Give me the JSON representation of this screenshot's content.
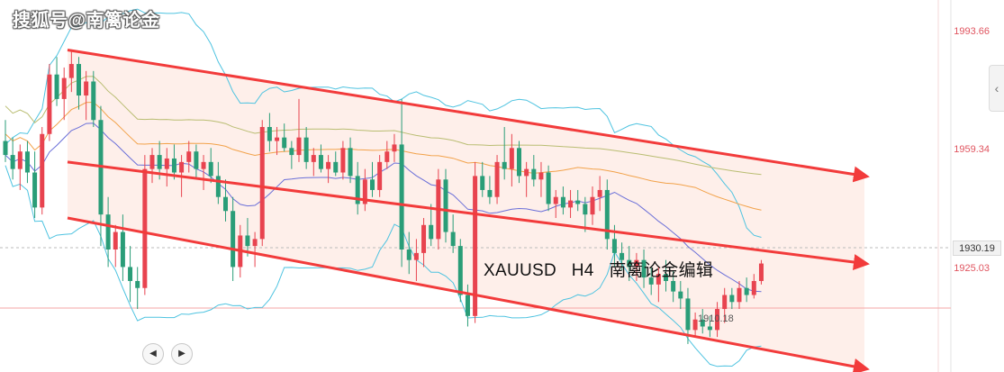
{
  "watermark": "搜狐号@南篱论金",
  "caption": {
    "symbol": "XAUUSD",
    "timeframe": "H4",
    "author": "南篱论金编辑"
  },
  "price_scale": {
    "labels": [
      "1993.66",
      "1959.34",
      "1925.03"
    ],
    "current_price": "1930.19"
  },
  "low_label": "1910.18",
  "nav": {
    "prev_icon": "◀",
    "next_icon": "▶",
    "collapse_icon": "‹"
  },
  "colors": {
    "up": "#e8434f",
    "down": "#2a9d78",
    "bollinger": "#4ec3e0",
    "ma_blue": "#6a6fd8",
    "ma_orange": "#f2a24a",
    "ma_olive": "#b9bd72",
    "channel": "#f23b3b",
    "channel_fill": "#fde9e3"
  },
  "chart_data": {
    "type": "candlestick",
    "symbol": "XAUUSD",
    "timeframe": "H4",
    "price_range": [
      1900,
      2005
    ],
    "candles": [
      [
        1966,
        1972,
        1960,
        1962
      ],
      [
        1962,
        1967,
        1955,
        1958
      ],
      [
        1958,
        1965,
        1952,
        1963
      ],
      [
        1963,
        1966,
        1954,
        1957
      ],
      [
        1957,
        1963,
        1944,
        1947
      ],
      [
        1947,
        1970,
        1945,
        1968
      ],
      [
        1968,
        1988,
        1966,
        1985
      ],
      [
        1985,
        1990,
        1976,
        1978
      ],
      [
        1978,
        1987,
        1972,
        1984
      ],
      [
        1984,
        1992,
        1980,
        1988
      ],
      [
        1988,
        1990,
        1975,
        1979
      ],
      [
        1979,
        1986,
        1972,
        1983
      ],
      [
        1983,
        1986,
        1970,
        1972
      ],
      [
        1972,
        1976,
        1936,
        1945
      ],
      [
        1945,
        1950,
        1930,
        1935
      ],
      [
        1935,
        1942,
        1930,
        1940
      ],
      [
        1940,
        1945,
        1926,
        1930
      ],
      [
        1930,
        1936,
        1920,
        1926
      ],
      [
        1926,
        1930,
        1918,
        1924
      ],
      [
        1924,
        1962,
        1922,
        1958
      ],
      [
        1958,
        1964,
        1954,
        1962
      ],
      [
        1962,
        1966,
        1955,
        1958
      ],
      [
        1958,
        1964,
        1953,
        1961
      ],
      [
        1961,
        1965,
        1955,
        1957
      ],
      [
        1957,
        1962,
        1950,
        1960
      ],
      [
        1960,
        1966,
        1957,
        1963
      ],
      [
        1963,
        1965,
        1955,
        1958
      ],
      [
        1958,
        1962,
        1952,
        1960
      ],
      [
        1960,
        1964,
        1954,
        1956
      ],
      [
        1956,
        1960,
        1948,
        1950
      ],
      [
        1950,
        1955,
        1943,
        1946
      ],
      [
        1946,
        1950,
        1926,
        1930
      ],
      [
        1930,
        1942,
        1927,
        1939
      ],
      [
        1939,
        1944,
        1933,
        1936
      ],
      [
        1936,
        1940,
        1930,
        1938
      ],
      [
        1938,
        1972,
        1936,
        1970
      ],
      [
        1970,
        1974,
        1963,
        1966
      ],
      [
        1966,
        1970,
        1962,
        1967
      ],
      [
        1967,
        1971,
        1963,
        1964
      ],
      [
        1964,
        1966,
        1958,
        1962
      ],
      [
        1962,
        1978,
        1960,
        1967
      ],
      [
        1967,
        1970,
        1958,
        1960
      ],
      [
        1960,
        1964,
        1956,
        1962
      ],
      [
        1962,
        1965,
        1957,
        1958
      ],
      [
        1958,
        1962,
        1954,
        1960
      ],
      [
        1960,
        1963,
        1956,
        1957
      ],
      [
        1957,
        1966,
        1955,
        1964
      ],
      [
        1964,
        1967,
        1954,
        1956
      ],
      [
        1956,
        1960,
        1945,
        1948
      ],
      [
        1948,
        1958,
        1946,
        1955
      ],
      [
        1955,
        1960,
        1950,
        1952
      ],
      [
        1952,
        1962,
        1950,
        1960
      ],
      [
        1960,
        1966,
        1958,
        1963
      ],
      [
        1963,
        1968,
        1960,
        1965
      ],
      [
        1965,
        1978,
        1930,
        1935
      ],
      [
        1935,
        1940,
        1928,
        1932
      ],
      [
        1932,
        1938,
        1926,
        1934
      ],
      [
        1934,
        1944,
        1930,
        1942
      ],
      [
        1942,
        1948,
        1936,
        1938
      ],
      [
        1938,
        1958,
        1935,
        1955
      ],
      [
        1955,
        1958,
        1937,
        1940
      ],
      [
        1940,
        1945,
        1934,
        1936
      ],
      [
        1936,
        1938,
        1920,
        1922
      ],
      [
        1922,
        1925,
        1913,
        1916
      ],
      [
        1916,
        1960,
        1914,
        1956
      ],
      [
        1956,
        1960,
        1950,
        1952
      ],
      [
        1952,
        1956,
        1948,
        1950
      ],
      [
        1950,
        1962,
        1948,
        1960
      ],
      [
        1960,
        1970,
        1955,
        1958
      ],
      [
        1958,
        1968,
        1953,
        1964
      ],
      [
        1964,
        1966,
        1954,
        1956
      ],
      [
        1956,
        1960,
        1950,
        1958
      ],
      [
        1958,
        1962,
        1953,
        1955
      ],
      [
        1955,
        1960,
        1950,
        1957
      ],
      [
        1957,
        1959,
        1946,
        1948
      ],
      [
        1948,
        1952,
        1944,
        1950
      ],
      [
        1950,
        1953,
        1945,
        1947
      ],
      [
        1947,
        1952,
        1944,
        1949
      ],
      [
        1949,
        1952,
        1946,
        1948
      ],
      [
        1948,
        1950,
        1940,
        1945
      ],
      [
        1945,
        1953,
        1942,
        1950
      ],
      [
        1950,
        1956,
        1946,
        1952
      ],
      [
        1952,
        1955,
        1935,
        1938
      ],
      [
        1938,
        1942,
        1930,
        1934
      ],
      [
        1934,
        1937,
        1929,
        1932
      ],
      [
        1932,
        1936,
        1926,
        1930
      ],
      [
        1930,
        1934,
        1926,
        1932
      ],
      [
        1932,
        1935,
        1924,
        1927
      ],
      [
        1927,
        1930,
        1922,
        1925
      ],
      [
        1925,
        1930,
        1920,
        1928
      ],
      [
        1928,
        1932,
        1923,
        1926
      ],
      [
        1926,
        1929,
        1920,
        1923
      ],
      [
        1923,
        1926,
        1918,
        1921
      ],
      [
        1921,
        1924,
        1908,
        1912
      ],
      [
        1912,
        1917,
        1910,
        1915
      ],
      [
        1915,
        1918,
        1911,
        1913
      ],
      [
        1913,
        1916,
        1910,
        1912
      ],
      [
        1912,
        1920,
        1910,
        1918
      ],
      [
        1918,
        1924,
        1914,
        1922
      ],
      [
        1922,
        1924,
        1918,
        1920
      ],
      [
        1920,
        1926,
        1918,
        1924
      ],
      [
        1924,
        1927,
        1920,
        1922
      ],
      [
        1922,
        1928,
        1921,
        1926
      ],
      [
        1926,
        1932,
        1925,
        1931
      ]
    ],
    "channel_lines": [
      {
        "from": [
          0,
          1992
        ],
        "to": [
          108,
          1956
        ]
      },
      {
        "from": [
          0,
          1960
        ],
        "to": [
          108,
          1931
        ]
      },
      {
        "from": [
          0,
          1944
        ],
        "to": [
          108,
          1901
        ]
      }
    ]
  }
}
